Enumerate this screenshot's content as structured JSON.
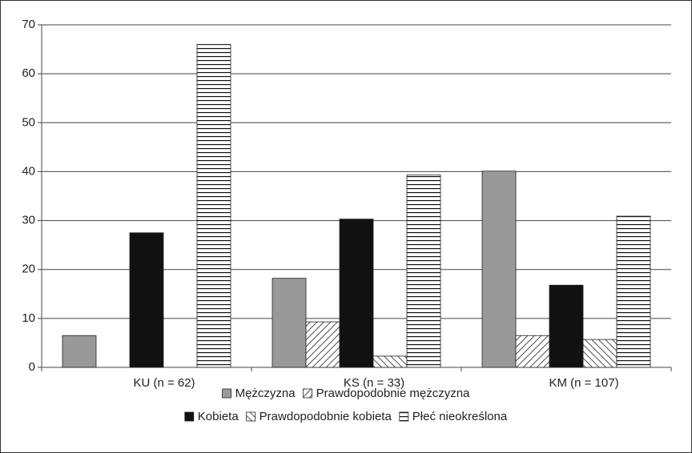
{
  "chart_data": {
    "type": "bar",
    "categories": [
      "KU (n = 62)",
      "KS (n = 33)",
      "KM (n = 107)"
    ],
    "series": [
      {
        "name": "Mężczyzna",
        "color": "#999999",
        "pattern": "solid",
        "values": [
          6.5,
          18.2,
          40.1
        ]
      },
      {
        "name": "Prawdopodobnie mężczyzna",
        "color": "#000000",
        "pattern": "hatch-right",
        "values": [
          0,
          9.3,
          6.5
        ]
      },
      {
        "name": "Kobieta",
        "color": "#111111",
        "pattern": "solid",
        "values": [
          27.5,
          30.3,
          16.8
        ]
      },
      {
        "name": "Prawdopodobnie kobieta",
        "color": "#000000",
        "pattern": "hatch-left",
        "values": [
          0,
          2.3,
          5.7
        ]
      },
      {
        "name": "Płeć nieokreślona",
        "color": "#000000",
        "pattern": "horizontal",
        "values": [
          66,
          39.3,
          30.9
        ]
      }
    ],
    "ylim": [
      0,
      70
    ],
    "yticks": [
      0,
      10,
      20,
      30,
      40,
      50,
      60,
      70
    ],
    "grid": true
  }
}
